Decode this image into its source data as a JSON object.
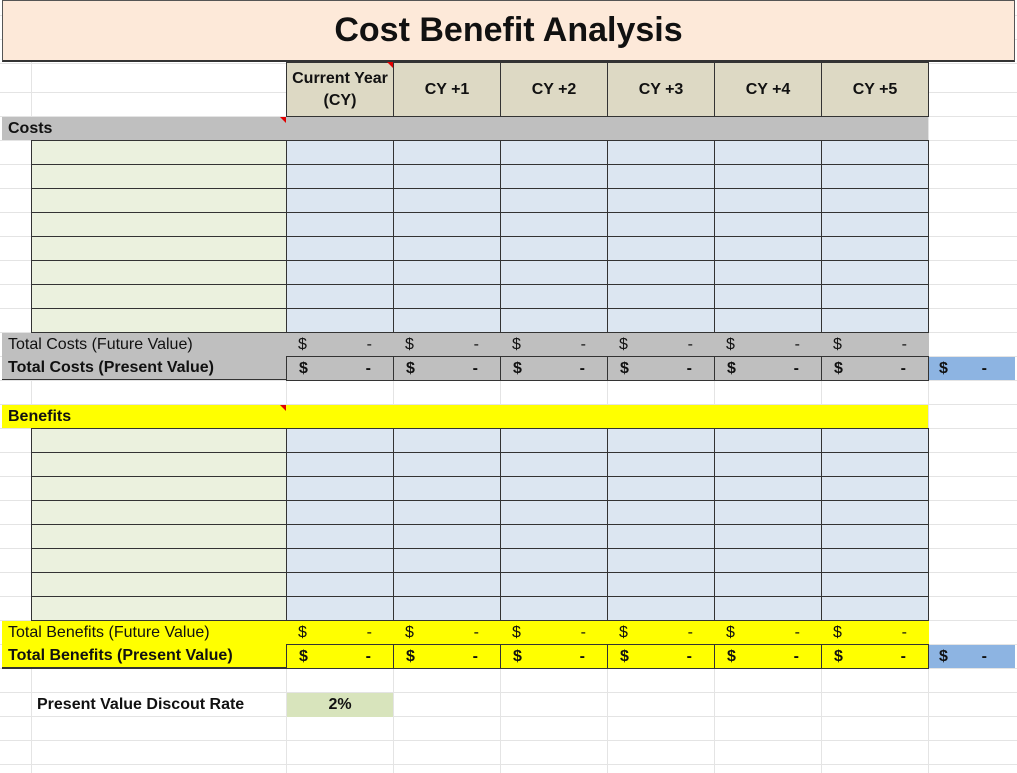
{
  "title": "Cost Benefit Analysis",
  "columns": [
    "Current Year (CY)",
    "CY +1",
    "CY +2",
    "CY +3",
    "CY +4",
    "CY +5"
  ],
  "costs": {
    "label": "Costs",
    "total_future_label": "Total Costs (Future Value)",
    "total_present_label": "Total Costs (Present Value)",
    "currency": "$",
    "total_future_values": [
      "-",
      "-",
      "-",
      "-",
      "-",
      "-"
    ],
    "total_present_values": [
      "-",
      "-",
      "-",
      "-",
      "-",
      "-"
    ],
    "grand_total": "-"
  },
  "benefits": {
    "label": "Benefits",
    "total_future_label": "Total Benefits (Future Value)",
    "total_present_label": "Total Benefits (Present Value)",
    "currency": "$",
    "total_future_values": [
      "-",
      "-",
      "-",
      "-",
      "-",
      "-"
    ],
    "total_present_values": [
      "-",
      "-",
      "-",
      "-",
      "-",
      "-"
    ],
    "grand_total": "-"
  },
  "discount": {
    "label": "Present Value Discout Rate",
    "value": "2%"
  },
  "colors": {
    "title_bg": "#fde9d9",
    "header_bg": "#ddd9c4",
    "costs_band": "#bfbfbf",
    "benefits_band": "#ffff00",
    "desc_cell": "#ebf1de",
    "value_cell": "#dce6f1",
    "grand_total_bg": "#8db4e2",
    "rate_bg": "#d8e4bc"
  }
}
